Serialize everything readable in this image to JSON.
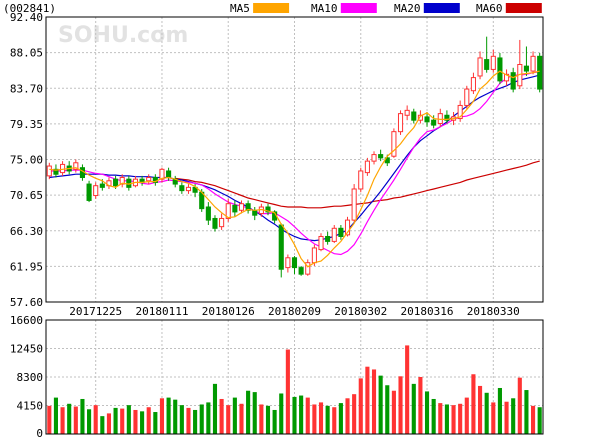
{
  "stock_code": "(002841)",
  "watermark": "SOHU.com",
  "legend": [
    {
      "label": "MA5",
      "color": "#ffa500"
    },
    {
      "label": "MA10",
      "color": "#ff00ff"
    },
    {
      "label": "MA20",
      "color": "#0000cc"
    },
    {
      "label": "MA60",
      "color": "#cc0000"
    }
  ],
  "colors": {
    "up": "#ff3333",
    "down": "#009900",
    "grid": "#c0c0c0",
    "frame": "#000000"
  },
  "chart_data": {
    "type": "candlestick",
    "price_axis": {
      "ylim": [
        57.6,
        92.4
      ],
      "ticks": [
        "92.40",
        "88.05",
        "83.70",
        "79.35",
        "75.00",
        "70.65",
        "66.30",
        "61.95",
        "57.60"
      ],
      "grid": true
    },
    "volume_axis": {
      "ylim": [
        0,
        16600
      ],
      "ticks": [
        "16600",
        "12450",
        "8300",
        "4150",
        "0"
      ],
      "grid": true
    },
    "date_labels": [
      {
        "index": 7,
        "label": "20171225"
      },
      {
        "index": 17,
        "label": "20180111"
      },
      {
        "index": 27,
        "label": "20180126"
      },
      {
        "index": 37,
        "label": "20180209"
      },
      {
        "index": 47,
        "label": "20180302"
      },
      {
        "index": 57,
        "label": "20180316"
      },
      {
        "index": 67,
        "label": "20180330"
      }
    ],
    "candles": [
      [
        73.0,
        74.2,
        74.6,
        72.6
      ],
      [
        73.8,
        73.2,
        74.4,
        72.8
      ],
      [
        73.4,
        74.4,
        74.8,
        73.0
      ],
      [
        74.2,
        73.6,
        74.8,
        73.2
      ],
      [
        73.8,
        74.6,
        75.0,
        73.4
      ],
      [
        74.0,
        72.8,
        74.4,
        72.4
      ],
      [
        72.0,
        70.0,
        72.4,
        69.8
      ],
      [
        70.6,
        71.8,
        72.2,
        70.2
      ],
      [
        72.0,
        71.6,
        72.6,
        71.2
      ],
      [
        71.8,
        72.4,
        72.8,
        71.4
      ],
      [
        72.6,
        71.8,
        73.0,
        71.4
      ],
      [
        72.0,
        72.8,
        73.2,
        71.6
      ],
      [
        72.6,
        71.6,
        73.0,
        71.2
      ],
      [
        71.8,
        72.6,
        73.0,
        71.6
      ],
      [
        72.6,
        72.2,
        73.0,
        71.8
      ],
      [
        72.4,
        72.8,
        73.2,
        72.0
      ],
      [
        72.8,
        72.2,
        73.2,
        71.8
      ],
      [
        72.6,
        73.8,
        74.0,
        72.2
      ],
      [
        73.6,
        72.8,
        74.0,
        72.4
      ],
      [
        72.6,
        72.0,
        73.0,
        71.6
      ],
      [
        71.8,
        71.2,
        72.2,
        70.8
      ],
      [
        71.2,
        71.6,
        72.0,
        70.8
      ],
      [
        71.6,
        71.0,
        72.0,
        70.4
      ],
      [
        71.0,
        69.0,
        71.4,
        68.6
      ],
      [
        69.2,
        67.6,
        69.8,
        67.0
      ],
      [
        67.8,
        66.6,
        68.2,
        66.2
      ],
      [
        66.8,
        67.8,
        68.4,
        66.4
      ],
      [
        67.8,
        69.6,
        70.2,
        67.4
      ],
      [
        69.4,
        68.6,
        70.0,
        68.0
      ],
      [
        68.8,
        69.6,
        70.0,
        68.4
      ],
      [
        69.6,
        68.8,
        70.0,
        68.4
      ],
      [
        68.8,
        68.2,
        69.2,
        67.6
      ],
      [
        68.4,
        69.2,
        69.6,
        68.0
      ],
      [
        69.2,
        68.6,
        69.6,
        68.2
      ],
      [
        68.6,
        67.6,
        68.8,
        67.2
      ],
      [
        67.0,
        61.6,
        67.2,
        60.6
      ],
      [
        61.8,
        63.0,
        63.4,
        61.2
      ],
      [
        63.0,
        61.8,
        63.2,
        61.0
      ],
      [
        61.8,
        61.0,
        62.0,
        60.8
      ],
      [
        61.0,
        62.4,
        62.8,
        60.8
      ],
      [
        62.4,
        64.2,
        64.6,
        62.0
      ],
      [
        64.0,
        65.6,
        66.0,
        63.8
      ],
      [
        65.6,
        65.0,
        66.2,
        64.6
      ],
      [
        65.0,
        66.6,
        67.0,
        64.8
      ],
      [
        66.6,
        65.6,
        67.0,
        65.2
      ],
      [
        65.8,
        67.6,
        68.0,
        65.6
      ],
      [
        67.6,
        71.4,
        72.0,
        67.4
      ],
      [
        71.4,
        73.6,
        74.0,
        71.0
      ],
      [
        73.4,
        74.8,
        75.2,
        73.0
      ],
      [
        74.8,
        75.6,
        76.0,
        74.4
      ],
      [
        75.6,
        75.2,
        76.2,
        74.8
      ],
      [
        75.2,
        74.6,
        75.6,
        74.2
      ],
      [
        75.4,
        78.4,
        78.8,
        75.2
      ],
      [
        78.4,
        80.6,
        81.0,
        78.0
      ],
      [
        80.4,
        81.0,
        81.6,
        79.8
      ],
      [
        80.8,
        79.8,
        81.2,
        79.4
      ],
      [
        79.8,
        80.4,
        81.0,
        79.4
      ],
      [
        80.2,
        79.6,
        80.8,
        79.0
      ],
      [
        79.8,
        79.2,
        80.4,
        78.8
      ],
      [
        79.4,
        80.6,
        81.2,
        79.0
      ],
      [
        80.4,
        79.8,
        81.0,
        79.4
      ],
      [
        79.8,
        80.2,
        80.8,
        79.2
      ],
      [
        80.0,
        81.6,
        82.2,
        79.6
      ],
      [
        81.6,
        83.6,
        84.0,
        81.2
      ],
      [
        83.4,
        85.0,
        85.6,
        83.0
      ],
      [
        85.2,
        87.4,
        88.2,
        84.8
      ],
      [
        87.2,
        86.0,
        90.0,
        85.6
      ],
      [
        86.0,
        87.6,
        88.4,
        85.6
      ],
      [
        87.4,
        84.6,
        88.0,
        84.2
      ],
      [
        84.6,
        85.4,
        86.0,
        84.0
      ],
      [
        85.6,
        83.6,
        86.2,
        83.2
      ],
      [
        84.0,
        86.6,
        89.6,
        83.6
      ],
      [
        86.4,
        85.8,
        88.8,
        85.2
      ],
      [
        85.8,
        87.6,
        88.2,
        85.4
      ],
      [
        87.6,
        83.6,
        88.0,
        83.2
      ]
    ],
    "ma5": [
      73.8,
      73.7,
      73.8,
      73.9,
      74.0,
      73.6,
      73.1,
      72.7,
      72.4,
      71.8,
      71.6,
      72.1,
      72.0,
      72.2,
      72.2,
      72.3,
      72.3,
      72.7,
      72.8,
      72.6,
      72.3,
      72.1,
      71.7,
      71.0,
      70.1,
      69.2,
      68.5,
      67.9,
      68.0,
      68.5,
      68.9,
      68.8,
      68.9,
      68.7,
      68.5,
      67.1,
      66.0,
      64.6,
      62.9,
      61.9,
      62.4,
      62.6,
      63.3,
      64.2,
      65.0,
      66.1,
      67.2,
      68.9,
      70.6,
      72.6,
      74.1,
      75.4,
      76.1,
      76.9,
      78.0,
      78.9,
      80.3,
      80.7,
      80.0,
      79.9,
      79.9,
      80.0,
      80.2,
      81.1,
      82.1,
      83.6,
      84.3,
      85.2,
      85.8,
      85.3,
      85.0,
      85.4,
      85.5,
      85.6,
      85.8
    ],
    "ma10": [
      73.6,
      73.6,
      73.6,
      73.7,
      73.7,
      73.7,
      73.5,
      73.3,
      73.2,
      72.9,
      72.6,
      72.4,
      72.4,
      72.3,
      72.1,
      72.0,
      72.2,
      72.3,
      72.5,
      72.4,
      72.3,
      72.2,
      72.1,
      71.9,
      71.4,
      70.8,
      70.3,
      69.8,
      69.5,
      69.3,
      69.1,
      68.7,
      68.4,
      68.4,
      68.5,
      68.0,
      67.5,
      66.8,
      66.0,
      65.3,
      64.7,
      64.3,
      63.9,
      63.5,
      63.4,
      63.8,
      64.6,
      65.9,
      67.4,
      68.8,
      70.1,
      71.3,
      72.5,
      73.8,
      75.2,
      76.5,
      77.6,
      78.4,
      78.6,
      79.0,
      79.4,
      79.9,
      80.2,
      80.3,
      80.6,
      81.2,
      82.1,
      83.2,
      84.3,
      84.9,
      85.3,
      85.3,
      85.4,
      85.6,
      85.7
    ],
    "ma20": [
      72.8,
      72.9,
      73.0,
      73.1,
      73.2,
      73.2,
      73.2,
      73.2,
      73.2,
      73.1,
      73.1,
      73.0,
      73.0,
      72.9,
      72.9,
      72.9,
      72.8,
      72.8,
      72.8,
      72.6,
      72.5,
      72.3,
      72.1,
      71.9,
      71.6,
      71.3,
      70.9,
      70.5,
      70.0,
      69.6,
      69.2,
      68.7,
      68.2,
      67.6,
      67.1,
      66.5,
      66.0,
      65.6,
      65.3,
      65.2,
      65.1,
      65.2,
      65.4,
      65.6,
      66.0,
      66.4,
      67.3,
      68.2,
      69.2,
      70.1,
      71.1,
      72.2,
      73.3,
      74.4,
      75.5,
      76.5,
      77.3,
      77.9,
      78.5,
      79.0,
      79.6,
      80.3,
      80.9,
      81.5,
      82.1,
      82.6,
      83.0,
      83.4,
      83.7,
      84.0,
      84.4,
      84.7,
      84.9,
      85.1,
      85.3
    ],
    "ma60": [
      null,
      null,
      null,
      null,
      null,
      null,
      null,
      null,
      null,
      null,
      null,
      null,
      null,
      null,
      null,
      null,
      null,
      null,
      null,
      72.7,
      72.6,
      72.5,
      72.3,
      72.2,
      72.0,
      71.8,
      71.5,
      71.2,
      70.9,
      70.6,
      70.3,
      70.1,
      69.9,
      69.7,
      69.5,
      69.3,
      69.2,
      69.2,
      69.2,
      69.1,
      69.1,
      69.1,
      69.2,
      69.3,
      69.3,
      69.4,
      69.5,
      69.6,
      69.7,
      69.9,
      70.0,
      70.1,
      70.3,
      70.4,
      70.6,
      70.8,
      71.0,
      71.2,
      71.4,
      71.6,
      71.8,
      72.0,
      72.2,
      72.5,
      72.7,
      72.9,
      73.1,
      73.3,
      73.5,
      73.7,
      73.9,
      74.1,
      74.3,
      74.6,
      74.8
    ],
    "volume": [
      4100,
      5300,
      3900,
      4400,
      4000,
      5100,
      3600,
      4200,
      2600,
      3000,
      3800,
      3700,
      4200,
      3500,
      3300,
      3900,
      3200,
      5200,
      5300,
      5000,
      4200,
      3800,
      3500,
      4300,
      4600,
      7300,
      5100,
      4200,
      5300,
      4400,
      6300,
      6100,
      4300,
      4100,
      3500,
      5900,
      12300,
      5400,
      5600,
      5300,
      4300,
      4600,
      4100,
      3900,
      4500,
      5200,
      5800,
      8100,
      9800,
      9400,
      8500,
      7100,
      6300,
      8400,
      12900,
      7300,
      8300,
      6200,
      5100,
      4500,
      4300,
      4200,
      4400,
      5300,
      8700,
      7000,
      6000,
      4600,
      6700,
      4700,
      5200,
      8200,
      6400,
      4100,
      3900
    ]
  }
}
